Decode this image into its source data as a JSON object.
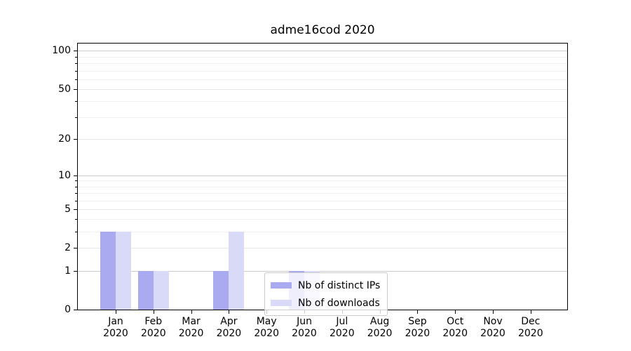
{
  "chart_data": {
    "type": "bar",
    "title": "adme16cod 2020",
    "months": [
      "Jan",
      "Feb",
      "Mar",
      "Apr",
      "May",
      "Jun",
      "Jul",
      "Aug",
      "Sep",
      "Oct",
      "Nov",
      "Dec"
    ],
    "year": "2020",
    "series": [
      {
        "name": "Nb of distinct IPs",
        "color": "#aaaaf0",
        "values": [
          3,
          1,
          0,
          1,
          0,
          1,
          0,
          0,
          0,
          0,
          0,
          0
        ]
      },
      {
        "name": "Nb of downloads",
        "color": "#d9d9f8",
        "values": [
          3,
          1,
          0,
          3,
          0,
          1,
          0,
          0,
          0,
          0,
          0,
          0
        ]
      }
    ],
    "yscale": "log1p",
    "ylim": [
      0,
      114
    ],
    "yticks_labeled": [
      0,
      1,
      2,
      5,
      10,
      20,
      50,
      100
    ],
    "yticks_emphasized": [
      1,
      10,
      100
    ],
    "yticks_minor": [
      3,
      4,
      6,
      7,
      8,
      9,
      30,
      40,
      60,
      70,
      80,
      90
    ],
    "grid": true,
    "legend_position": "lower center",
    "colors": {
      "grid_major": "#cccccc",
      "grid_mid": "#e7e7e7",
      "grid_minor": "#f2f2f2",
      "axis": "#000000"
    }
  }
}
